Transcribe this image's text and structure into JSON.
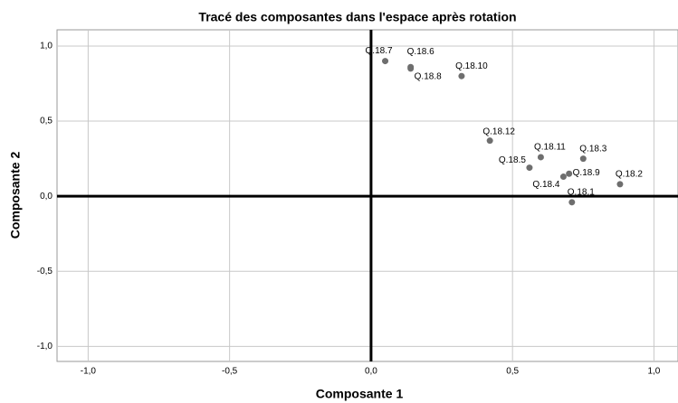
{
  "chart_data": {
    "type": "scatter",
    "title": "Tracé des composantes dans l'espace après rotation",
    "xlabel": "Composante 1",
    "ylabel": "Composante 2",
    "point_labels": [
      "Q.18.7",
      "Q.18.6",
      "Q.18.8",
      "Q.18.10",
      "Q.18.12",
      "Q.18.11",
      "Q.18.3",
      "Q.18.5",
      "Q.18.9",
      "Q.18.4",
      "Q.18.2",
      "Q.18.1"
    ],
    "x": [
      0.05,
      0.14,
      0.14,
      0.32,
      0.42,
      0.6,
      0.75,
      0.56,
      0.7,
      0.68,
      0.88,
      0.71
    ],
    "values": [
      0.9,
      0.86,
      0.85,
      0.8,
      0.37,
      0.26,
      0.25,
      0.19,
      0.15,
      0.13,
      0.08,
      -0.04
    ],
    "color": "#6e6e6e",
    "xlim": [
      -1.11,
      1.085
    ],
    "ylim": [
      -1.1,
      1.108
    ],
    "xticks": [
      {
        "value": -1,
        "label": "-1,0"
      },
      {
        "value": -0.5,
        "label": "-0,5"
      },
      {
        "value": 0,
        "label": "0,0"
      },
      {
        "value": 0.5,
        "label": "0,5"
      },
      {
        "value": 1,
        "label": "1,0"
      }
    ],
    "yticks": [
      {
        "value": -1,
        "label": "-1,0"
      },
      {
        "value": -0.5,
        "label": "-0,5"
      },
      {
        "value": 0,
        "label": "0,0"
      },
      {
        "value": 0.5,
        "label": "0,5"
      },
      {
        "value": 1,
        "label": "1,0"
      }
    ],
    "grid": true
  }
}
